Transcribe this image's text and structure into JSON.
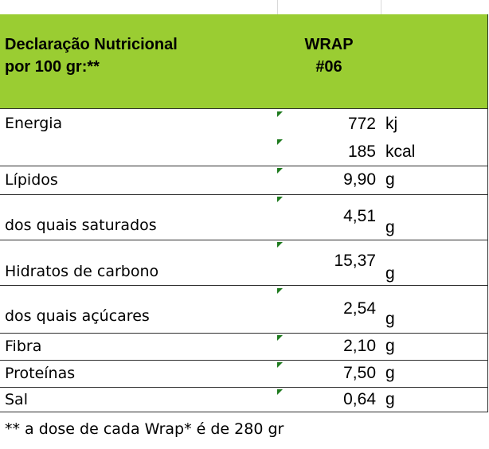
{
  "header": {
    "title_line1": "Declaração Nutricional",
    "title_line2": "por 100 gr:**",
    "product_line1": "WRAP",
    "product_line2": "#06",
    "background_color": "#9acd32"
  },
  "rows": [
    {
      "label": "Energia",
      "values": [
        {
          "value": "772",
          "unit": "kj"
        },
        {
          "value": "185",
          "unit": "kcal"
        }
      ]
    },
    {
      "label": "Lípidos",
      "values": [
        {
          "value": "9,90",
          "unit": "g"
        }
      ]
    },
    {
      "label": "dos quais saturados",
      "values": [
        {
          "value": "4,51",
          "unit": "g"
        }
      ]
    },
    {
      "label": "Hidratos de carbono",
      "values": [
        {
          "value": "15,37",
          "unit": "g"
        }
      ]
    },
    {
      "label": "dos quais açúcares",
      "values": [
        {
          "value": "2,54",
          "unit": "g"
        }
      ]
    },
    {
      "label": "Fibra",
      "values": [
        {
          "value": "2,10",
          "unit": "g"
        }
      ]
    },
    {
      "label": "Proteínas",
      "values": [
        {
          "value": "7,50",
          "unit": "g"
        }
      ]
    },
    {
      "label": "Sal",
      "values": [
        {
          "value": "0,64",
          "unit": "g"
        }
      ]
    }
  ],
  "footnote": "** a dose de cada Wrap* é de 280 gr"
}
